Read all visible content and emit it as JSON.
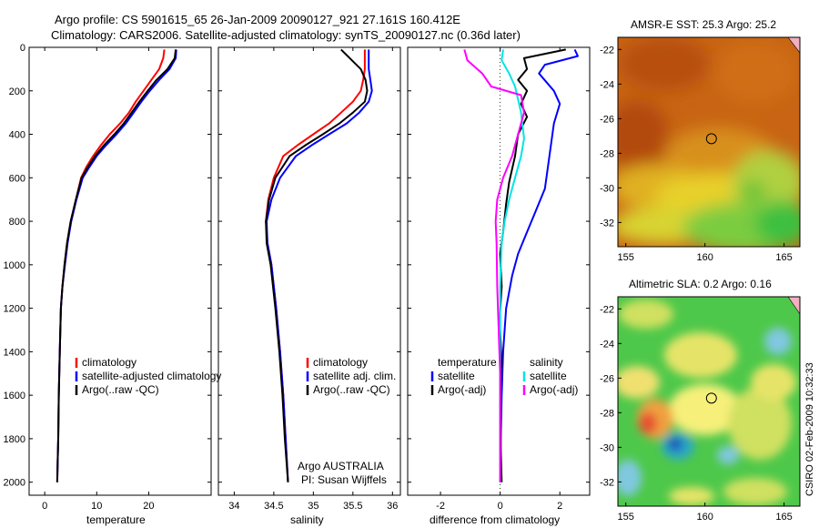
{
  "header": {
    "line1": "Argo profile: CS 5901615_65 26-Jan-2009 20090127_921 27.161S 160.412E",
    "line2": "Climatology: CARS2006. Satellite-adjusted climatology: synTS_20090127.nc (0.36d later)"
  },
  "side_label": "CSIRO 02-Feb-2009 10:32:33",
  "colors": {
    "climatology": "#ff0000",
    "satellite": "#0000ff",
    "argo": "#000000",
    "salinity_sat": "#00e5e5",
    "salinity_argo": "#ff00ff"
  },
  "chart_data": [
    {
      "type": "line",
      "panel": "temperature",
      "xlabel": "temperature",
      "ylabel": "",
      "xlim": [
        -3,
        32
      ],
      "ylim": [
        2060,
        0
      ],
      "xticks": [
        0,
        10,
        20
      ],
      "yticks": [
        0,
        200,
        400,
        600,
        800,
        1000,
        1200,
        1400,
        1600,
        1800,
        2000
      ],
      "legend": [
        "climatology",
        "satellite-adjusted climatology",
        "Argo(..raw -QC)"
      ],
      "series": [
        {
          "name": "climatology",
          "color": "#ff0000",
          "x": [
            23.0,
            22.8,
            22.0,
            20.5,
            19.0,
            17.5,
            16.2,
            14.5,
            12.5,
            10.8,
            9.3,
            8.0,
            7.0,
            6.0,
            5.0,
            4.3,
            3.8,
            3.4,
            3.1,
            2.9,
            2.7,
            2.6,
            2.5,
            2.4
          ],
          "y": [
            10,
            50,
            100,
            150,
            200,
            250,
            300,
            350,
            400,
            450,
            500,
            550,
            600,
            700,
            800,
            900,
            1000,
            1100,
            1200,
            1400,
            1600,
            1800,
            1900,
            2000
          ]
        },
        {
          "name": "satellite-adjusted climatology",
          "color": "#0000ff",
          "x": [
            25.3,
            25.2,
            24.0,
            22.0,
            20.2,
            18.6,
            17.1,
            15.6,
            13.8,
            11.8,
            10.0,
            8.6,
            7.3,
            6.1,
            5.1,
            4.4,
            3.9,
            3.4,
            3.1,
            2.9,
            2.7,
            2.6,
            2.5,
            2.4
          ],
          "y": [
            10,
            50,
            100,
            150,
            200,
            250,
            300,
            350,
            400,
            450,
            500,
            550,
            600,
            700,
            800,
            900,
            1000,
            1100,
            1200,
            1400,
            1600,
            1800,
            1900,
            2000
          ]
        },
        {
          "name": "Argo(..raw -QC)",
          "color": "#000000",
          "x": [
            25.2,
            25.0,
            23.6,
            21.5,
            19.8,
            18.2,
            16.7,
            15.2,
            13.4,
            11.4,
            9.7,
            8.3,
            7.1,
            6.0,
            5.0,
            4.3,
            3.8,
            3.4,
            3.1,
            2.9,
            2.7,
            2.6,
            2.5,
            2.4
          ],
          "y": [
            10,
            50,
            100,
            150,
            200,
            250,
            300,
            350,
            400,
            450,
            500,
            550,
            600,
            700,
            800,
            900,
            1000,
            1100,
            1200,
            1400,
            1600,
            1800,
            1900,
            2000
          ]
        }
      ]
    },
    {
      "type": "line",
      "panel": "salinity",
      "xlabel": "salinity",
      "xlim": [
        33.8,
        36.1
      ],
      "ylim": [
        2060,
        0
      ],
      "xticks": [
        34,
        34.5,
        35,
        35.5,
        36
      ],
      "legend": [
        "climatology",
        "satellite adj. clim.",
        "Argo(..raw -QC)"
      ],
      "annotation": [
        "Argo AUSTRALIA",
        "PI: Susan Wijffels"
      ],
      "series": [
        {
          "name": "climatology",
          "color": "#ff0000",
          "x": [
            35.65,
            35.65,
            35.63,
            35.6,
            35.5,
            35.35,
            35.2,
            35.0,
            34.8,
            34.62,
            34.5,
            34.43,
            34.4,
            34.42,
            34.47,
            34.53,
            34.58,
            34.62,
            34.65,
            34.68
          ],
          "y": [
            10,
            100,
            150,
            200,
            250,
            300,
            350,
            400,
            450,
            500,
            600,
            700,
            800,
            900,
            1000,
            1200,
            1400,
            1600,
            1800,
            2000
          ]
        },
        {
          "name": "satellite adj. clim.",
          "color": "#0000ff",
          "x": [
            35.7,
            35.7,
            35.72,
            35.74,
            35.7,
            35.58,
            35.42,
            35.2,
            34.98,
            34.78,
            34.58,
            34.47,
            34.41,
            34.42,
            34.47,
            34.53,
            34.58,
            34.62,
            34.65,
            34.68
          ],
          "y": [
            10,
            100,
            150,
            200,
            250,
            300,
            350,
            400,
            450,
            500,
            600,
            700,
            800,
            900,
            1000,
            1200,
            1400,
            1600,
            1800,
            2000
          ]
        },
        {
          "name": "Argo(..raw -QC)",
          "color": "#000000",
          "x": [
            35.35,
            35.6,
            35.66,
            35.68,
            35.65,
            35.5,
            35.33,
            35.12,
            34.9,
            34.7,
            34.52,
            34.44,
            34.4,
            34.41,
            34.46,
            34.52,
            34.57,
            34.61,
            34.64,
            34.68
          ],
          "y": [
            10,
            100,
            150,
            200,
            250,
            300,
            350,
            400,
            450,
            500,
            600,
            700,
            800,
            900,
            1000,
            1200,
            1400,
            1600,
            1800,
            2000
          ]
        }
      ]
    },
    {
      "type": "line",
      "panel": "difference",
      "xlabel": "difference from climatology",
      "xlim": [
        -3.1,
        3.0
      ],
      "ylim": [
        2060,
        0
      ],
      "xticks": [
        -2,
        0,
        2
      ],
      "zero_line": true,
      "legend": [
        "temperature",
        "satellite",
        "Argo(-adj)",
        "salinity",
        "satellite",
        "Argo(-adj)"
      ],
      "series": [
        {
          "name": "satellite",
          "group": "temperature",
          "color": "#0000ff",
          "x": [
            2.5,
            2.6,
            1.5,
            1.3,
            1.8,
            2.0,
            1.8,
            1.7,
            1.6,
            1.5,
            1.2,
            0.9,
            0.6,
            0.4,
            0.2,
            0.1,
            0.05,
            0.02,
            0.0
          ],
          "y": [
            10,
            40,
            80,
            120,
            200,
            260,
            350,
            450,
            550,
            650,
            750,
            850,
            950,
            1050,
            1200,
            1400,
            1600,
            1800,
            2000
          ]
        },
        {
          "name": "Argo(-adj)",
          "group": "temperature",
          "color": "#000000",
          "x": [
            2.2,
            0.8,
            0.9,
            0.6,
            0.9,
            0.7,
            0.9,
            0.6,
            0.5,
            0.3,
            0.2,
            0.1,
            0.0,
            0.05,
            -0.02,
            0.05,
            0.0,
            0.02,
            0.05
          ],
          "y": [
            10,
            50,
            100,
            150,
            200,
            260,
            320,
            400,
            500,
            620,
            720,
            850,
            950,
            1100,
            1250,
            1450,
            1650,
            1850,
            2000
          ]
        },
        {
          "name": "satellite",
          "group": "salinity",
          "color": "#00e5e5",
          "x": [
            0.1,
            0.05,
            0.3,
            0.5,
            0.6,
            0.7,
            0.75,
            0.8,
            0.7,
            0.5,
            0.3,
            0.15,
            0.05,
            0.0,
            0.0,
            0.0,
            0.0,
            0.0
          ],
          "y": [
            10,
            60,
            120,
            180,
            240,
            300,
            360,
            420,
            500,
            600,
            700,
            800,
            900,
            1100,
            1300,
            1500,
            1750,
            2000
          ]
        },
        {
          "name": "Argo(-adj)",
          "group": "salinity",
          "color": "#ff00ff",
          "x": [
            -1.2,
            -1.1,
            -0.6,
            -0.3,
            0.7,
            0.8,
            0.6,
            0.4,
            0.1,
            -0.1,
            -0.15,
            -0.12,
            -0.1,
            -0.05,
            0.0,
            0.0,
            0.0
          ],
          "y": [
            10,
            60,
            120,
            180,
            220,
            300,
            400,
            500,
            600,
            700,
            800,
            900,
            1100,
            1300,
            1500,
            1750,
            2000
          ]
        }
      ]
    },
    {
      "type": "heatmap",
      "panel": "sst-map",
      "title": "AMSR-E SST: 25.3 Argo: 25.2",
      "xlim": [
        154.5,
        166
      ],
      "ylim": [
        -33.4,
        -21.3
      ],
      "xticks": [
        155,
        160,
        165
      ],
      "yticks": [
        -22,
        -24,
        -26,
        -28,
        -30,
        -32
      ],
      "marker": {
        "lon": 160.412,
        "lat": -27.161
      }
    },
    {
      "type": "heatmap",
      "panel": "sla-map",
      "title": "Altimetric SLA: 0.2 Argo: 0.16",
      "xlim": [
        154.5,
        166
      ],
      "ylim": [
        -33.4,
        -21.3
      ],
      "xticks": [
        155,
        160,
        165
      ],
      "yticks": [
        -22,
        -24,
        -26,
        -28,
        -30,
        -32
      ],
      "marker": {
        "lon": 160.412,
        "lat": -27.161
      }
    }
  ]
}
